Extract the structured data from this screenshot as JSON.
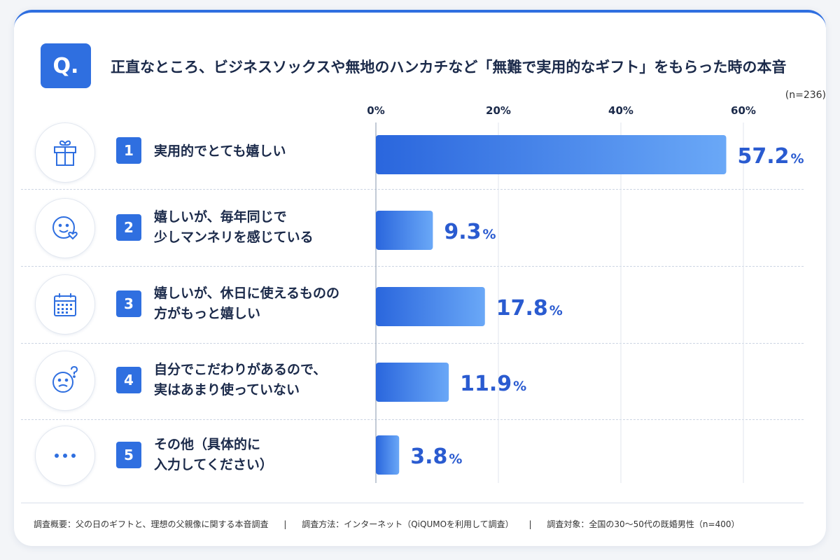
{
  "header": {
    "badge": "Q.",
    "title": "正直なところ、ビジネスソックスや無地のハンカチなど「無難で実用的なギフト」をもらった時の本音",
    "sample": "(n=236)"
  },
  "rows": [
    {
      "num": "1",
      "line1": "実用的でとても嬉しい",
      "line2": "",
      "icon": "gift-icon"
    },
    {
      "num": "2",
      "line1": "嬉しいが、毎年同じで",
      "line2": "少しマンネリを感じている",
      "icon": "smile-heart-icon"
    },
    {
      "num": "3",
      "line1": "嬉しいが、休日に使えるものの",
      "line2": "方がもっと嬉しい",
      "icon": "calendar-icon"
    },
    {
      "num": "4",
      "line1": "自分でこだわりがあるので、",
      "line2": "実はあまり使っていない",
      "icon": "confused-face-icon"
    },
    {
      "num": "5",
      "line1": "その他（具体的に",
      "line2": "入力してください）",
      "icon": "ellipsis-icon"
    }
  ],
  "chart_data": {
    "type": "bar",
    "orientation": "horizontal",
    "categories": [
      "実用的でとても嬉しい",
      "嬉しいが、毎年同じで少しマンネリを感じている",
      "嬉しいが、休日に使えるものの方がもっと嬉しい",
      "自分でこだわりがあるので、実はあまり使っていない",
      "その他（具体的に入力してください）"
    ],
    "values": [
      57.2,
      9.3,
      17.8,
      11.9,
      3.8
    ],
    "value_labels": [
      "57.2",
      "9.3",
      "17.8",
      "11.9",
      "3.8"
    ],
    "unit": "%",
    "ticks": [
      "0%",
      "20%",
      "40%",
      "60%"
    ],
    "tick_values": [
      0,
      20,
      40,
      60
    ],
    "xlim": [
      0,
      60
    ],
    "grid": true,
    "bar_color_start": "#2a66dd",
    "bar_color_end": "#6aa8f7",
    "label_color": "#2a5bd0"
  },
  "footer": {
    "overview": "調査概要：父の日のギフトと、理想の父親像に関する本音調査",
    "method": "調査方法：インターネット（QiQUMOを利用して調査）",
    "target": "調査対象：全国の30～50代の既婚男性（n=400）",
    "separator": "|"
  },
  "colors": {
    "accent": "#2f6fe0",
    "text": "#1b2a4a"
  }
}
